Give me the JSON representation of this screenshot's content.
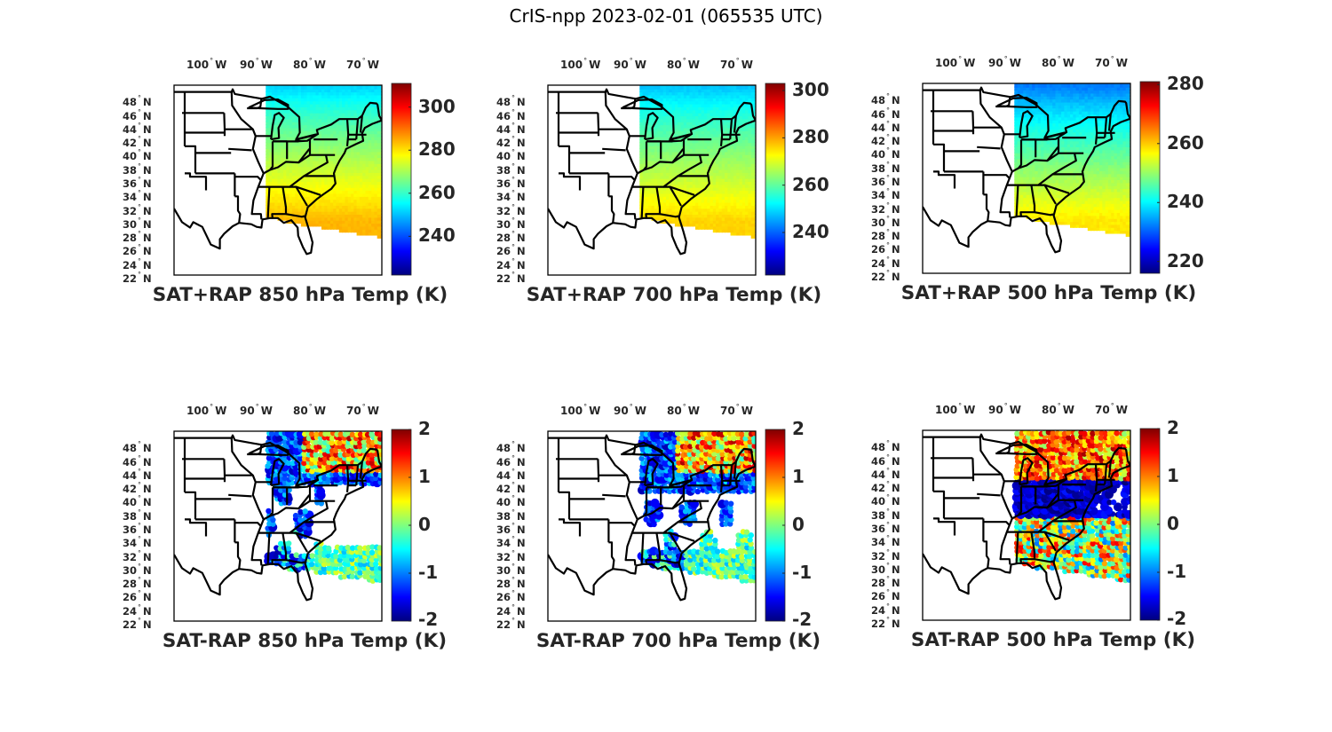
{
  "figure_title": "CrIS-npp 2023-02-01 (065535 UTC)",
  "colors": {
    "jet": [
      "#00007f",
      "#0000ff",
      "#007fff",
      "#00ffff",
      "#7fff7f",
      "#ffff00",
      "#ff7f00",
      "#ff0000",
      "#7f0000"
    ],
    "border": "#000000",
    "text": "#262626"
  },
  "axes": {
    "lon_ticks": [
      {
        "value": -100,
        "label": "100",
        "hemi": "W"
      },
      {
        "value": -90,
        "label": "90",
        "hemi": "W"
      },
      {
        "value": -80,
        "label": "80",
        "hemi": "W"
      },
      {
        "value": -70,
        "label": "70",
        "hemi": "W"
      }
    ],
    "lat_ticks": [
      {
        "value": 48,
        "label": "48",
        "hemi": "N"
      },
      {
        "value": 46,
        "label": "46",
        "hemi": "N"
      },
      {
        "value": 44,
        "label": "44",
        "hemi": "N"
      },
      {
        "value": 42,
        "label": "42",
        "hemi": "N"
      },
      {
        "value": 40,
        "label": "40",
        "hemi": "N"
      },
      {
        "value": 38,
        "label": "38",
        "hemi": "N"
      },
      {
        "value": 36,
        "label": "36",
        "hemi": "N"
      },
      {
        "value": 34,
        "label": "34",
        "hemi": "N"
      },
      {
        "value": 32,
        "label": "32",
        "hemi": "N"
      },
      {
        "value": 30,
        "label": "30",
        "hemi": "N"
      },
      {
        "value": 28,
        "label": "28",
        "hemi": "N"
      },
      {
        "value": 26,
        "label": "26",
        "hemi": "N"
      },
      {
        "value": 24,
        "label": "24",
        "hemi": "N"
      },
      {
        "value": 22,
        "label": "22",
        "hemi": "N"
      }
    ],
    "lon_range": [
      -106,
      -67
    ],
    "lat_range": [
      22,
      50
    ]
  },
  "chart_data": [
    {
      "type": "heatmap",
      "title": "SAT+RAP 850 hPa Temp (K)",
      "kind": "temp",
      "level": 850,
      "clim": [
        222,
        311
      ],
      "cbar_ticks": [
        "300",
        "280",
        "260",
        "240"
      ],
      "cbar_tick_values": [
        300,
        280,
        260,
        240
      ],
      "field": {
        "north_value": 252,
        "south_value": 284
      }
    },
    {
      "type": "heatmap",
      "title": "SAT+RAP 700 hPa Temp (K)",
      "kind": "temp",
      "level": 700,
      "clim": [
        222,
        303
      ],
      "cbar_ticks": [
        "300",
        "280",
        "260",
        "240"
      ],
      "cbar_tick_values": [
        300,
        280,
        260,
        240
      ],
      "field": {
        "north_value": 248,
        "south_value": 276
      }
    },
    {
      "type": "heatmap",
      "title": "SAT+RAP 500 hPa Temp (K)",
      "kind": "temp",
      "level": 500,
      "clim": [
        216,
        281
      ],
      "cbar_ticks": [
        "280",
        "260",
        "240",
        "220"
      ],
      "cbar_tick_values": [
        280,
        260,
        240,
        220
      ],
      "field": {
        "north_value": 232,
        "south_value": 258
      }
    },
    {
      "type": "heatmap",
      "title": "SAT-RAP 850 hPa Temp (K)",
      "kind": "diff",
      "level": 850,
      "clim": [
        -2,
        2
      ],
      "cbar_ticks": [
        "2",
        "1",
        "0",
        "-1",
        "-2"
      ],
      "cbar_tick_values": [
        2,
        1,
        0,
        -1,
        -2
      ]
    },
    {
      "type": "heatmap",
      "title": "SAT-RAP 700 hPa Temp (K)",
      "kind": "diff",
      "level": 700,
      "clim": [
        -2,
        2
      ],
      "cbar_ticks": [
        "2",
        "1",
        "0",
        "-1",
        "-2"
      ],
      "cbar_tick_values": [
        2,
        1,
        0,
        -1,
        -2
      ]
    },
    {
      "type": "heatmap",
      "title": "SAT-RAP 500 hPa Temp (K)",
      "kind": "diff",
      "level": 500,
      "clim": [
        -2,
        2
      ],
      "cbar_ticks": [
        "2",
        "1",
        "0",
        "-1",
        "-2"
      ],
      "cbar_tick_values": [
        2,
        1,
        0,
        -1,
        -2
      ]
    }
  ]
}
